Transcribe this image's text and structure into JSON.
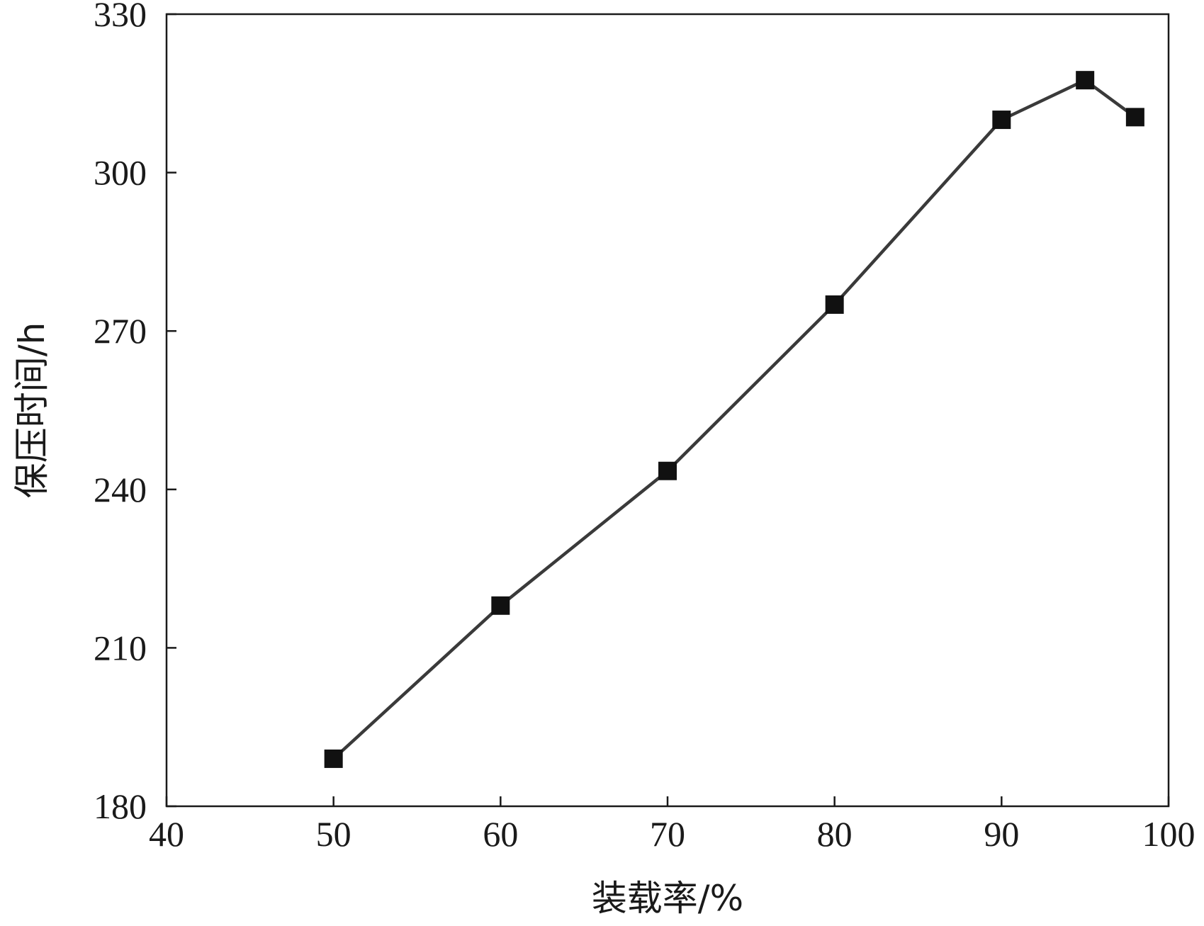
{
  "chart_data": {
    "type": "line",
    "xlabel": "装载率/%",
    "ylabel": "保压时间/h",
    "xlim": [
      40,
      100
    ],
    "ylim": [
      180,
      330
    ],
    "xticks": [
      40,
      50,
      60,
      70,
      80,
      90,
      100
    ],
    "yticks": [
      180,
      210,
      240,
      270,
      300,
      330
    ],
    "grid": false,
    "marker": "square",
    "line_color": "#3a3a3a",
    "marker_color": "#111111",
    "series": [
      {
        "x": [
          50,
          60,
          70,
          80,
          90,
          95,
          98
        ],
        "y": [
          189,
          218,
          243.5,
          275,
          310,
          317.5,
          310.5
        ]
      }
    ]
  }
}
